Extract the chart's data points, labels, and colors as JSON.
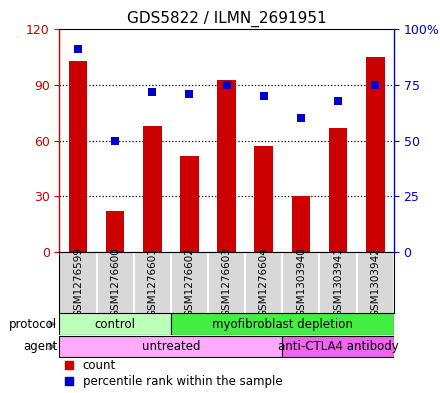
{
  "title": "GDS5822 / ILMN_2691951",
  "samples": [
    "GSM1276599",
    "GSM1276600",
    "GSM1276601",
    "GSM1276602",
    "GSM1276603",
    "GSM1276604",
    "GSM1303940",
    "GSM1303941",
    "GSM1303942"
  ],
  "counts": [
    103,
    22,
    68,
    52,
    93,
    57,
    30,
    67,
    105
  ],
  "percentiles": [
    91,
    50,
    72,
    71,
    75,
    70,
    60,
    68,
    75
  ],
  "left_ylim": [
    0,
    120
  ],
  "right_ylim": [
    0,
    100
  ],
  "left_yticks": [
    0,
    30,
    60,
    90,
    120
  ],
  "right_yticks": [
    0,
    25,
    50,
    75,
    100
  ],
  "right_yticklabels": [
    "0",
    "25",
    "50",
    "75",
    "100%"
  ],
  "bar_color": "#cc0000",
  "dot_color": "#0000cc",
  "protocol_groups": [
    {
      "label": "control",
      "start": 0,
      "end": 3,
      "color": "#bbffbb"
    },
    {
      "label": "myofibroblast depletion",
      "start": 3,
      "end": 9,
      "color": "#44ee44"
    }
  ],
  "agent_groups": [
    {
      "label": "untreated",
      "start": 0,
      "end": 6,
      "color": "#ffaaff"
    },
    {
      "label": "anti-CTLA4 antibody",
      "start": 6,
      "end": 9,
      "color": "#ee66ee"
    }
  ],
  "protocol_label": "protocol",
  "agent_label": "agent",
  "legend_count": "count",
  "legend_pct": "percentile rank within the sample",
  "main_bg": "#ffffff",
  "label_box_bg": "#d8d8d8",
  "bar_width": 0.5,
  "dot_size": 35,
  "left_axis_color": "#cc0000",
  "right_axis_color": "#0000cc",
  "title_fontsize": 11
}
